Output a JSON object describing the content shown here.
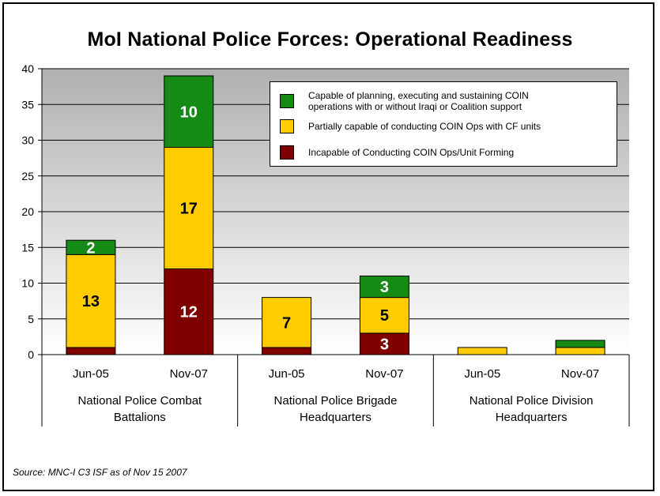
{
  "colors": {
    "capable": "#158A15",
    "partial": "#FFCC00",
    "incapable": "#800000",
    "plot_bg_top": "#B0B0B0",
    "plot_bg_bottom": "#FFFFFF"
  },
  "chart_data": {
    "type": "bar",
    "stacked": true,
    "title": "MoI National Police Forces:  Operational Readiness",
    "categories": [
      "Jun-05",
      "Nov-07",
      "Jun-05",
      "Nov-07",
      "Jun-05",
      "Nov-07"
    ],
    "groups": [
      {
        "label": "National Police Combat Battalions",
        "lines": [
          "National Police Combat",
          "Battalions"
        ]
      },
      {
        "label": "National Police Brigade Headquarters",
        "lines": [
          "National Police Brigade",
          "Headquarters"
        ]
      },
      {
        "label": "National Police Division Headquarters",
        "lines": [
          "National Police Division",
          "Headquarters"
        ]
      }
    ],
    "series": [
      {
        "name": "Incapable of Conducting COIN Ops/Unit Forming",
        "key": "incapable",
        "values": [
          1,
          12,
          1,
          3,
          0,
          0
        ]
      },
      {
        "name": "Partially capable of conducting COIN Ops with CF units",
        "key": "partial",
        "values": [
          13,
          17,
          7,
          5,
          1,
          1
        ]
      },
      {
        "name": "Capable of planning, executing and sustaining COIN operations with or without Iraqi or Coalition support",
        "key": "capable",
        "values": [
          2,
          10,
          0,
          3,
          0,
          1
        ]
      }
    ],
    "data_labels": [
      {
        "bar": 0,
        "series": "partial",
        "text": "13"
      },
      {
        "bar": 0,
        "series": "capable",
        "text": "2"
      },
      {
        "bar": 1,
        "series": "incapable",
        "text": "12"
      },
      {
        "bar": 1,
        "series": "partial",
        "text": "17"
      },
      {
        "bar": 1,
        "series": "capable",
        "text": "10"
      },
      {
        "bar": 2,
        "series": "partial",
        "text": "7"
      },
      {
        "bar": 3,
        "series": "incapable",
        "text": "3"
      },
      {
        "bar": 3,
        "series": "partial",
        "text": "5"
      },
      {
        "bar": 3,
        "series": "capable",
        "text": "3"
      }
    ],
    "ylim": [
      0,
      40
    ],
    "yticks": [
      "0",
      "5",
      "10",
      "15",
      "20",
      "25",
      "30",
      "35",
      "40"
    ],
    "grid": true,
    "legend_placement": "top-right",
    "xlabel": "",
    "ylabel": ""
  },
  "legend": [
    {
      "key": "capable",
      "lines": [
        "Capable of planning, executing and sustaining COIN",
        "operations with or without Iraqi or Coalition support"
      ]
    },
    {
      "key": "partial",
      "lines": [
        "Partially capable of conducting COIN Ops with CF units"
      ]
    },
    {
      "key": "incapable",
      "lines": [
        "Incapable of Conducting COIN Ops/Unit Forming"
      ]
    }
  ],
  "source": "Source: MNC-I C3 ISF as of Nov 15 2007"
}
